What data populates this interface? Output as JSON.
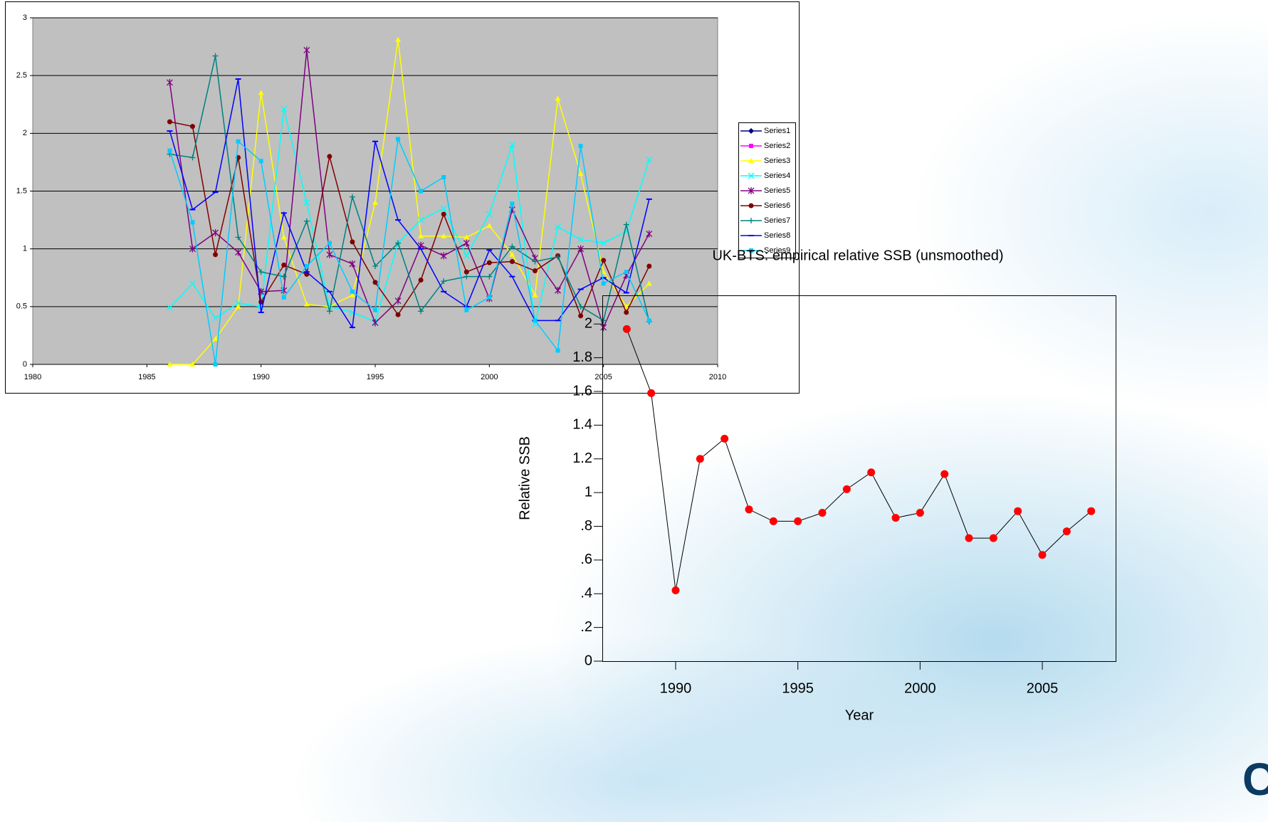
{
  "chart_data": [
    {
      "type": "line",
      "x": [
        1986,
        1987,
        1988,
        1989,
        1990,
        1991,
        1992,
        1993,
        1994,
        1995,
        1996,
        1997,
        1998,
        1999,
        2000,
        2001,
        2002,
        2003,
        2004,
        2005,
        2006,
        2007
      ],
      "xlim": [
        1980,
        2010
      ],
      "xticks": [
        1980,
        1985,
        1990,
        1995,
        2000,
        2005,
        2010
      ],
      "ylim": [
        0,
        3
      ],
      "yticks": [
        0,
        0.5,
        1,
        1.5,
        2,
        2.5,
        3
      ],
      "grid": true,
      "legend": "right",
      "series": [
        {
          "name": "Series1",
          "color": "#000080",
          "values": [
            null,
            null,
            null,
            null,
            null,
            null,
            null,
            null,
            null,
            null,
            null,
            null,
            null,
            null,
            null,
            null,
            null,
            null,
            null,
            null,
            null,
            null
          ]
        },
        {
          "name": "Series2",
          "color": "#ff00ff",
          "values": [
            null,
            null,
            null,
            null,
            null,
            null,
            null,
            null,
            null,
            null,
            null,
            null,
            null,
            null,
            null,
            null,
            null,
            null,
            null,
            null,
            null,
            null
          ]
        },
        {
          "name": "Series3",
          "color": "#ffff00",
          "values": [
            0,
            0,
            0.22,
            0.5,
            2.35,
            1.1,
            0.52,
            0.5,
            0.6,
            1.4,
            2.81,
            1.11,
            1.11,
            1.1,
            1.2,
            0.95,
            0.6,
            2.3,
            1.65,
            0.8,
            0.5,
            0.7
          ]
        },
        {
          "name": "Series4",
          "color": "#00ffff",
          "values": [
            0.49,
            0.7,
            0.4,
            0.53,
            0.5,
            2.21,
            1.4,
            0.5,
            0.45,
            0.37,
            1.05,
            1.25,
            1.35,
            0.94,
            1.3,
            1.9,
            0.35,
            1.19,
            1.08,
            1.05,
            1.15,
            1.77
          ]
        },
        {
          "name": "Series5",
          "color": "#800080",
          "values": [
            2.44,
            1.0,
            1.14,
            0.97,
            0.63,
            0.64,
            2.72,
            0.95,
            0.87,
            0.36,
            0.55,
            1.03,
            0.94,
            1.05,
            0.57,
            1.34,
            0.92,
            0.64,
            1.0,
            0.32,
            0.77,
            1.13
          ]
        },
        {
          "name": "Series6",
          "color": "#800000",
          "values": [
            2.1,
            2.06,
            0.95,
            1.79,
            0.54,
            0.86,
            0.78,
            1.8,
            1.06,
            0.71,
            0.43,
            0.73,
            1.3,
            0.8,
            0.88,
            0.89,
            0.81,
            0.94,
            0.42,
            0.9,
            0.45,
            0.85
          ]
        },
        {
          "name": "Series7",
          "color": "#008080",
          "values": [
            1.82,
            1.79,
            2.67,
            1.1,
            0.8,
            0.76,
            1.24,
            0.46,
            1.45,
            0.85,
            1.05,
            0.46,
            0.72,
            0.76,
            0.76,
            1.02,
            0.89,
            0.93,
            0.5,
            0.38,
            1.21,
            0.37
          ]
        },
        {
          "name": "Series8",
          "color": "#0000ff",
          "values": [
            2.02,
            1.34,
            1.49,
            2.47,
            0.45,
            1.31,
            0.8,
            0.63,
            0.32,
            1.93,
            1.25,
            1.0,
            0.63,
            0.5,
            0.99,
            0.76,
            0.38,
            0.38,
            0.65,
            0.75,
            0.62,
            1.43
          ]
        },
        {
          "name": "Series9",
          "color": "#00ccff",
          "values": [
            1.85,
            1.23,
            0,
            1.93,
            1.76,
            0.58,
            0.85,
            1.05,
            0.63,
            0.47,
            1.95,
            1.5,
            1.62,
            0.47,
            0.58,
            1.39,
            0.38,
            0.12,
            1.89,
            0.7,
            0.8,
            0.38
          ]
        }
      ]
    },
    {
      "type": "line",
      "title": "UK-BTS: empirical relative SSB (unsmoothed)",
      "x_label": "Year",
      "y_label": "Relative SSB",
      "x": [
        1988,
        1989,
        1990,
        1991,
        1992,
        1993,
        1994,
        1995,
        1996,
        1997,
        1998,
        1999,
        2000,
        2001,
        2002,
        2003,
        2004,
        2005,
        2006,
        2007
      ],
      "values": [
        1.97,
        1.59,
        0.42,
        1.2,
        1.32,
        0.9,
        0.83,
        0.83,
        0.88,
        1.02,
        1.12,
        0.85,
        0.88,
        1.11,
        0.73,
        0.73,
        0.89,
        0.63,
        0.77,
        0.89
      ],
      "color": "#000000",
      "marker_color": "#ff0000",
      "xlim": [
        1987,
        2008
      ],
      "xticks": [
        1990,
        1995,
        2000,
        2005
      ],
      "ylim": [
        0,
        2.17
      ],
      "yticks": [
        0,
        {
          "value": 0.2,
          "label": ".2"
        },
        {
          "value": 0.4,
          "label": ".4"
        },
        {
          "value": 0.6,
          "label": ".6"
        },
        {
          "value": 0.8,
          "label": ".8"
        },
        1,
        1.2,
        1.4,
        1.6,
        1.8,
        2
      ]
    }
  ],
  "logo": "Cefas"
}
